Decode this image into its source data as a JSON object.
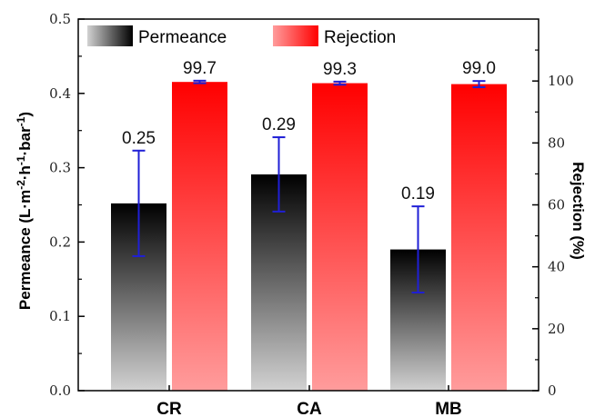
{
  "chart_data": {
    "type": "bar",
    "categories": [
      "CR",
      "CA",
      "MB"
    ],
    "left_axis": {
      "label_main": "Permeance (L·m",
      "sup1": "-2",
      "label_mid1": "·h",
      "sup2": "-1",
      "label_mid2": "·bar",
      "sup3": "-1",
      "label_end": ")",
      "ylim": [
        0,
        0.5
      ],
      "ticks": [
        "0.0",
        "0.1",
        "0.2",
        "0.3",
        "0.4",
        "0.5"
      ]
    },
    "right_axis": {
      "label": "Rejection (%)",
      "ylim": [
        0,
        120
      ],
      "ticks": [
        "0",
        "20",
        "40",
        "60",
        "80",
        "100"
      ]
    },
    "series": [
      {
        "name": "Permeance",
        "axis": "left",
        "values": [
          0.252,
          0.291,
          0.19
        ],
        "error": [
          0.071,
          0.05,
          0.058
        ],
        "labels": [
          "0.25",
          "0.29",
          "0.19"
        ],
        "color_top": "#000000",
        "color_bottom": "#d2d2d2"
      },
      {
        "name": "Rejection",
        "axis": "right",
        "values": [
          99.7,
          99.3,
          99.0
        ],
        "error": [
          0.4,
          0.5,
          1.0
        ],
        "labels": [
          "99.7",
          "99.3",
          "99.0"
        ],
        "color_top": "#ff0000",
        "color_bottom": "#ff9c9c"
      }
    ],
    "error_bar_color": "#1f1fd6",
    "legend_position": "top-left"
  }
}
